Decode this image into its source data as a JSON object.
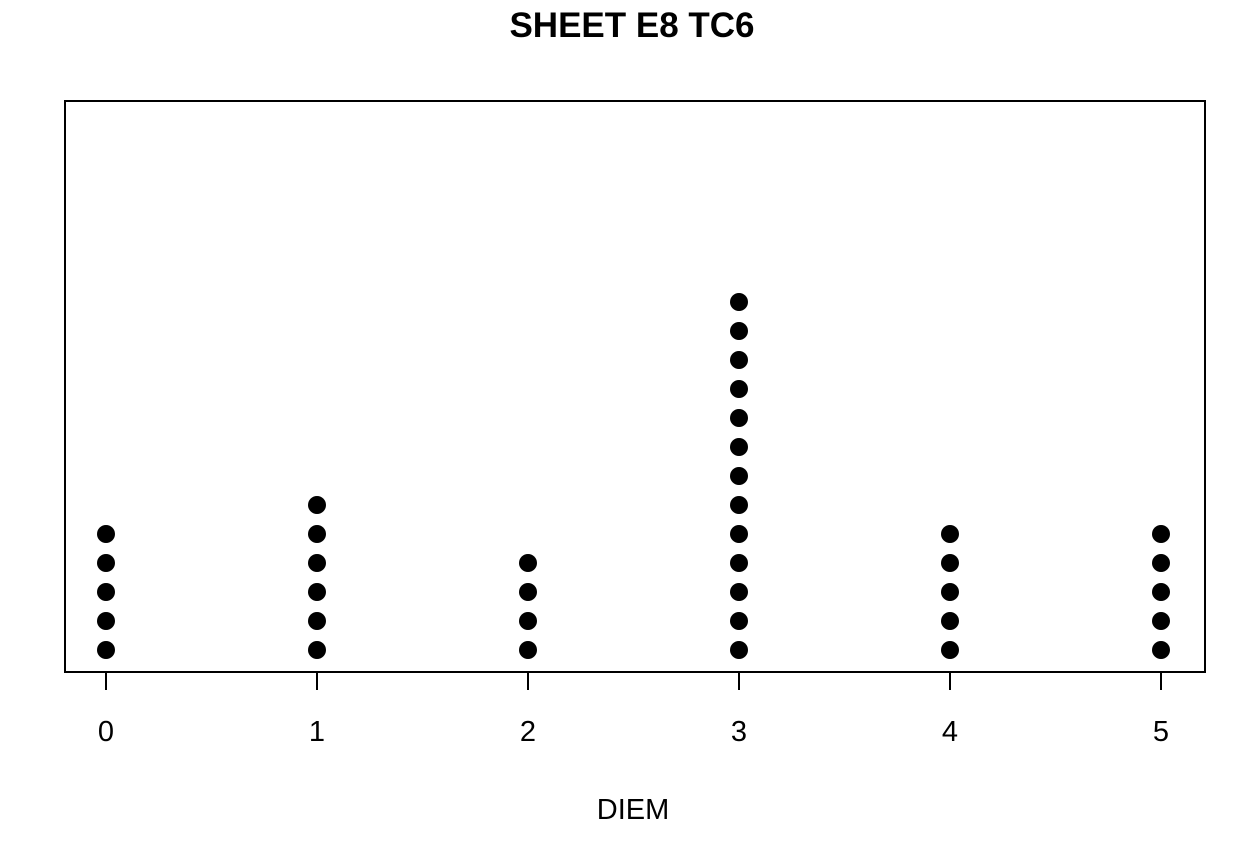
{
  "chart_data": {
    "type": "scatter",
    "title": "SHEET E8 TC6",
    "xlabel": "DIEM",
    "ylabel": "",
    "x_ticks": [
      0,
      1,
      2,
      3,
      4,
      5
    ],
    "xlim": [
      -0.2,
      5.2
    ],
    "grid": false,
    "legend": "none",
    "marker_color": "#000000",
    "series": [
      {
        "points": [
          {
            "x": 0,
            "count": 5
          },
          {
            "x": 1,
            "count": 6
          },
          {
            "x": 2,
            "count": 4
          },
          {
            "x": 3,
            "count": 13
          },
          {
            "x": 4,
            "count": 5
          },
          {
            "x": 5,
            "count": 5
          }
        ]
      }
    ]
  }
}
